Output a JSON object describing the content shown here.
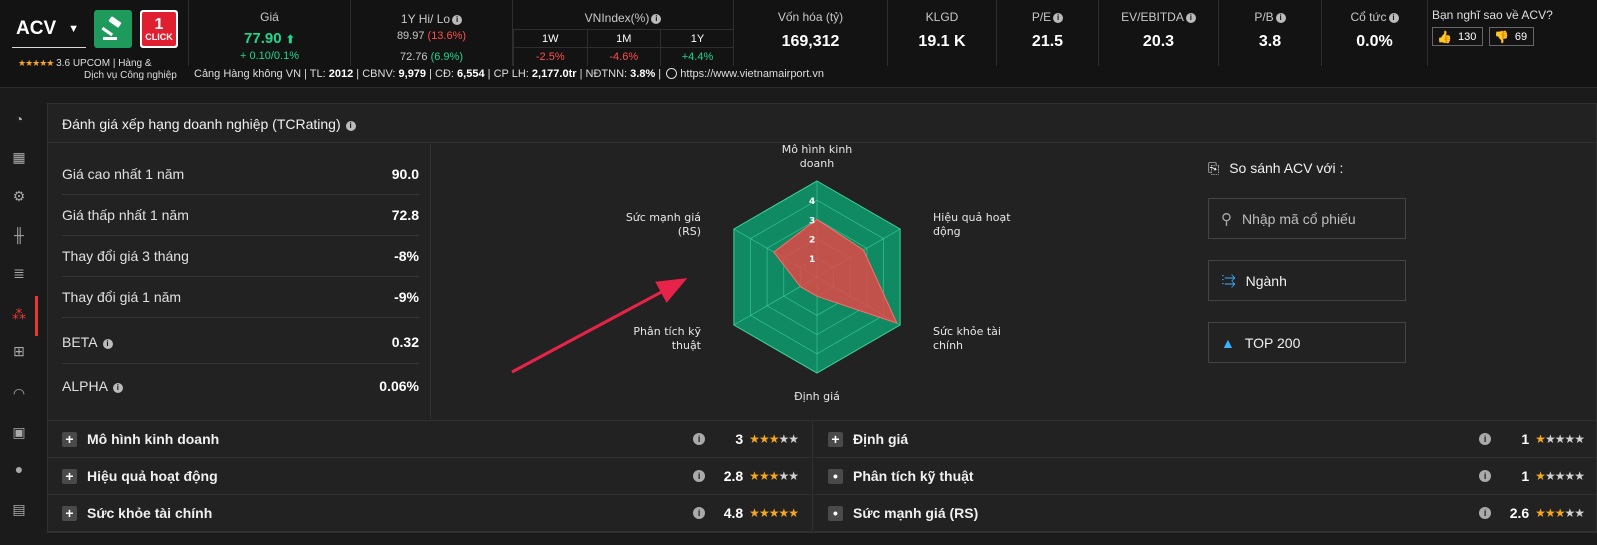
{
  "ticker": {
    "symbol": "ACV",
    "rating": "3.6",
    "rating_stars": "★★★★★",
    "exchange": "UPCOM",
    "industry": "Hàng & Dịch vụ Công nghiệp",
    "click_text": "CLICK",
    "click_num": "1"
  },
  "header": {
    "price": {
      "label": "Giá",
      "value": "77.90",
      "change": "+ 0.10/0.1%",
      "arrow": "⬆"
    },
    "hilo": {
      "label": "1Y Hi/ Lo",
      "hi": "89.97",
      "hi_pct": "(13.6%)",
      "lo": "72.76",
      "lo_pct": "(6.9%)"
    },
    "vnindex": {
      "label": "VNIndex(%)",
      "periods": [
        "1W",
        "1M",
        "1Y"
      ],
      "values": [
        "-2.5%",
        "-4.6%",
        "+4.4%"
      ]
    },
    "market_cap": {
      "label": "Vốn hóa (tỷ)",
      "value": "169,312"
    },
    "klgd": {
      "label": "KLGD",
      "value": "19.1 K"
    },
    "pe": {
      "label": "P/E",
      "value": "21.5"
    },
    "ev_ebitda": {
      "label": "EV/EBITDA",
      "value": "20.3"
    },
    "pb": {
      "label": "P/B",
      "value": "3.8"
    },
    "dividend": {
      "label": "Cổ tức",
      "value": "0.0%"
    },
    "vote": {
      "question": "Bạn nghĩ sao về ACV?",
      "up": "130",
      "down": "69"
    }
  },
  "company": {
    "name": "Cảng Hàng không VN",
    "tl_label": "TL:",
    "tl": "2012",
    "cbnv_label": "CBNV:",
    "cbnv": "9,979",
    "cd_label": "CĐ:",
    "cd": "6,554",
    "cplh_label": "CP LH:",
    "cplh": "2,177.0tr",
    "ndtnn_label": "NĐTNN:",
    "ndtnn": "3.8%",
    "website": "https://www.vietnamairport.vn"
  },
  "panel": {
    "title": "Đánh giá xếp hạng doanh nghiệp (TCRating)",
    "metrics": [
      {
        "label": "Giá cao nhất 1 năm",
        "value": "90.0"
      },
      {
        "label": "Giá thấp nhất 1 năm",
        "value": "72.8"
      },
      {
        "label": "Thay đổi giá 3 tháng",
        "value": "-8%"
      },
      {
        "label": "Thay đổi giá 1 năm",
        "value": "-9%"
      },
      {
        "label": "BETA",
        "value": "0.32"
      },
      {
        "label": "ALPHA",
        "value": "0.06%"
      }
    ],
    "compare": {
      "title": "So sánh ACV với :",
      "search_placeholder": "Nhập mã cổ phiếu",
      "industry_button": "Ngành",
      "top_button": "TOP 200"
    }
  },
  "radar": {
    "axes": [
      {
        "label_lines": [
          "Mô hình kinh",
          "doanh"
        ],
        "value": 3
      },
      {
        "label_lines": [
          "Hiệu quả hoạt",
          "động"
        ],
        "value": 2.8
      },
      {
        "label_lines": [
          "Sức khỏe tài",
          "chính"
        ],
        "value": 4.8
      },
      {
        "label_lines": [
          "Định giá"
        ],
        "value": 1
      },
      {
        "label_lines": [
          "Phân tích kỹ",
          "thuật"
        ],
        "value": 1
      },
      {
        "label_lines": [
          "Sức mạnh giá",
          "(RS)"
        ],
        "value": 2.6
      }
    ],
    "ticks": [
      "1",
      "2",
      "3",
      "4"
    ],
    "max": 5,
    "bg_color": "#0f8a62",
    "fill_color": "#e04848"
  },
  "criteria": [
    {
      "name": "Mô hình kinh doanh",
      "score": "3",
      "stars": 3,
      "toggle": "+"
    },
    {
      "name": "Hiệu quả hoạt động",
      "score": "2.8",
      "stars": 3,
      "toggle": "+"
    },
    {
      "name": "Sức khỏe tài chính",
      "score": "4.8",
      "stars": 5,
      "toggle": "+"
    },
    {
      "name": "Định giá",
      "score": "1",
      "stars": 1,
      "toggle": "+"
    },
    {
      "name": "Phân tích kỹ thuật",
      "score": "1",
      "stars": 1,
      "toggle": "•"
    },
    {
      "name": "Sức mạnh giá (RS)",
      "score": "2.6",
      "stars": 3,
      "toggle": "•"
    }
  ]
}
